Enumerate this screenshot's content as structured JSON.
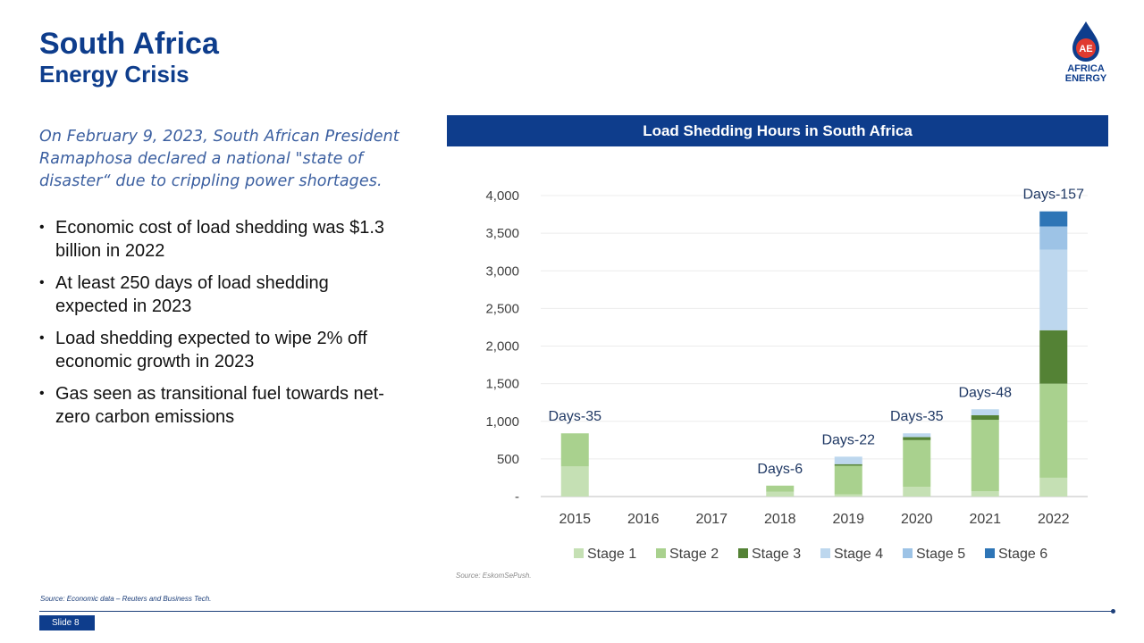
{
  "header": {
    "title": "South Africa",
    "subtitle": "Energy Crisis"
  },
  "logo": {
    "mark": "AE",
    "line1": "AFRICA",
    "line2": "ENERGY"
  },
  "intro": "On February 9, 2023, South African President Ramaphosa declared a national \"state of disaster“ due to crippling power shortages.",
  "bullets": [
    "Economic cost of load shedding was $1.3 billion in 2022",
    "At least 250 days of load shedding expected in 2023",
    "Load shedding expected to wipe 2% off economic growth in 2023",
    "Gas seen as transitional fuel towards net-zero carbon emissions"
  ],
  "chart_header": "Load Shedding Hours in South Africa",
  "chart_data": {
    "type": "bar",
    "stacked": true,
    "title": "Load Shedding Hours in South Africa",
    "categories": [
      "2015",
      "2016",
      "2017",
      "2018",
      "2019",
      "2020",
      "2021",
      "2022"
    ],
    "series": [
      {
        "name": "Stage 1",
        "color": "#c5e0b4",
        "values": [
          400,
          0,
          0,
          65,
          30,
          130,
          70,
          250
        ]
      },
      {
        "name": "Stage 2",
        "color": "#a9d18e",
        "values": [
          440,
          0,
          0,
          80,
          380,
          620,
          950,
          1250
        ]
      },
      {
        "name": "Stage 3",
        "color": "#548235",
        "values": [
          0,
          0,
          0,
          0,
          20,
          40,
          60,
          710
        ]
      },
      {
        "name": "Stage 4",
        "color": "#bdd7ee",
        "values": [
          0,
          0,
          0,
          0,
          100,
          50,
          80,
          1070
        ]
      },
      {
        "name": "Stage 5",
        "color": "#9dc3e6",
        "values": [
          0,
          0,
          0,
          0,
          0,
          0,
          0,
          310
        ]
      },
      {
        "name": "Stage 6",
        "color": "#2e75b6",
        "values": [
          0,
          0,
          0,
          0,
          0,
          0,
          0,
          200
        ]
      }
    ],
    "annotations": [
      "Days-35",
      "",
      "",
      "Days-6",
      "Days-22",
      "Days-35",
      "Days-48",
      "Days-157"
    ],
    "y_ticks": [
      "-",
      "500",
      "1,000",
      "1,500",
      "2,000",
      "2,500",
      "3,000",
      "3,500",
      "4,000"
    ],
    "ylim": [
      0,
      4000
    ],
    "grid": true,
    "legend_position": "bottom"
  },
  "chart_source": "Source: EskomSePush.",
  "source": "Source: Economic data – Reuters and Business Tech.",
  "slide_label": "Slide 8",
  "colors": {
    "brand_blue": "#0e3d8c",
    "logo_red": "#e03a2f"
  }
}
